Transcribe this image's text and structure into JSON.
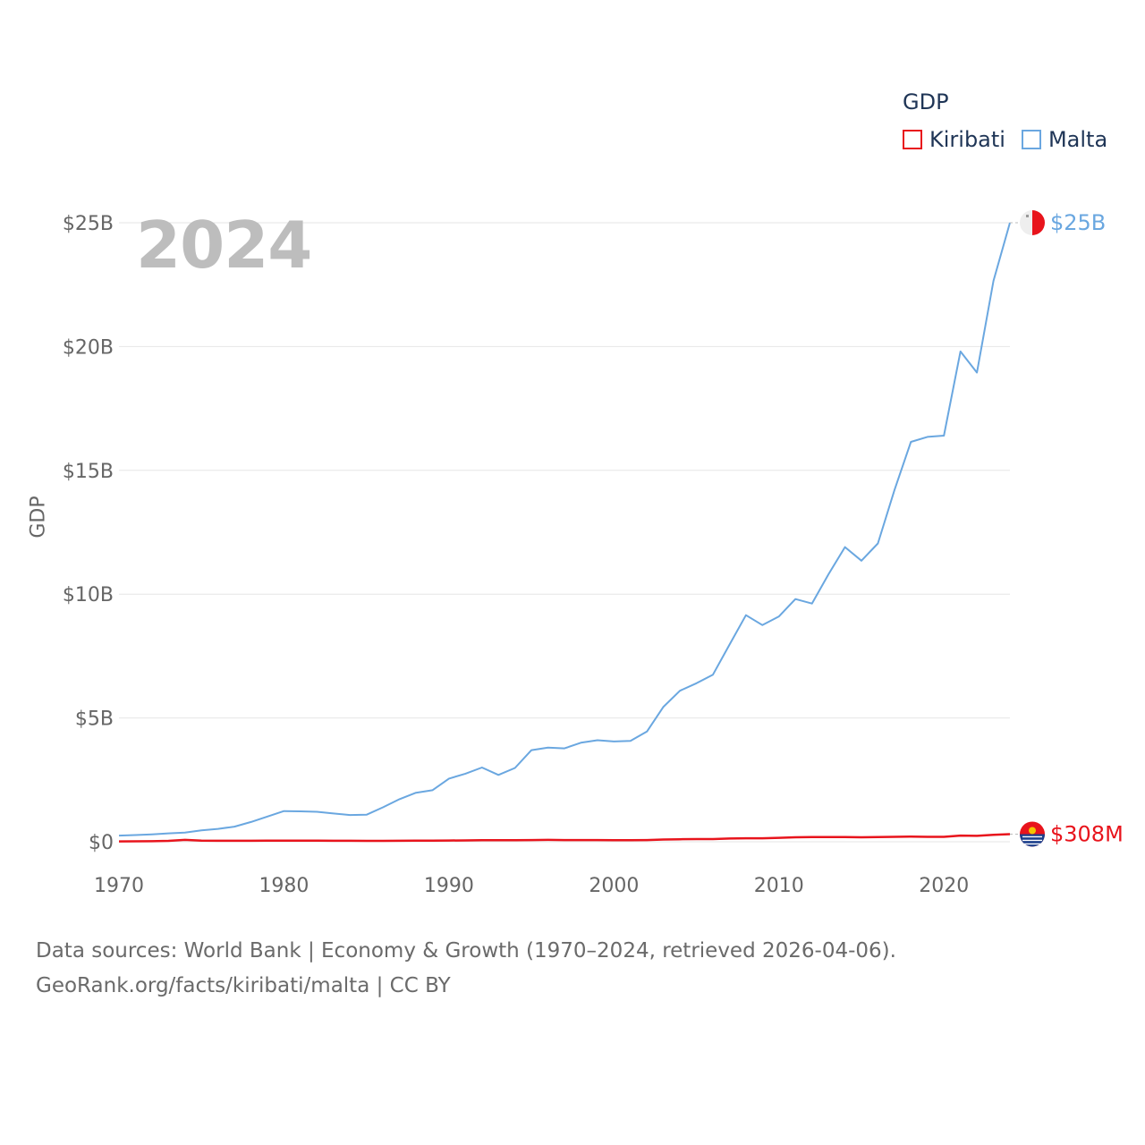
{
  "year_label": "2024",
  "legend": {
    "title": "GDP",
    "items": [
      {
        "name": "Kiribati",
        "color": "#e8141c"
      },
      {
        "name": "Malta",
        "color": "#6aa7e0"
      }
    ]
  },
  "source": {
    "line1": "Data sources: World Bank | Economy & Growth (1970–2024, retrieved 2026-04-06).",
    "line2": "GeoRank.org/facts/kiribati/malta | CC BY"
  },
  "chart_data": {
    "type": "line",
    "title": "GDP",
    "xlabel": "",
    "ylabel": "GDP",
    "xlim": [
      1970,
      2024
    ],
    "ylim": [
      0,
      25
    ],
    "y_unit": "USD billions",
    "x_ticks": [
      1970,
      1980,
      1990,
      2000,
      2010,
      2020
    ],
    "y_ticks": [
      0,
      5,
      10,
      15,
      20,
      25
    ],
    "y_tick_labels": [
      "$0",
      "$5B",
      "$10B",
      "$15B",
      "$20B",
      "$25B"
    ],
    "grid": true,
    "legend_position": "top-right",
    "x": [
      1970,
      1971,
      1972,
      1973,
      1974,
      1975,
      1976,
      1977,
      1978,
      1979,
      1980,
      1981,
      1982,
      1983,
      1984,
      1985,
      1986,
      1987,
      1988,
      1989,
      1990,
      1991,
      1992,
      1993,
      1994,
      1995,
      1996,
      1997,
      1998,
      1999,
      2000,
      2001,
      2002,
      2003,
      2004,
      2005,
      2006,
      2007,
      2008,
      2009,
      2010,
      2011,
      2012,
      2013,
      2014,
      2015,
      2016,
      2017,
      2018,
      2019,
      2020,
      2021,
      2022,
      2023,
      2024
    ],
    "series": [
      {
        "name": "Kiribati",
        "color": "#e8141c",
        "end_label": "$308M",
        "values": [
          0.015,
          0.018,
          0.022,
          0.035,
          0.075,
          0.045,
          0.04,
          0.038,
          0.04,
          0.042,
          0.042,
          0.045,
          0.043,
          0.04,
          0.04,
          0.035,
          0.035,
          0.04,
          0.045,
          0.048,
          0.05,
          0.055,
          0.06,
          0.06,
          0.065,
          0.07,
          0.075,
          0.07,
          0.07,
          0.07,
          0.065,
          0.06,
          0.07,
          0.09,
          0.1,
          0.11,
          0.11,
          0.13,
          0.14,
          0.14,
          0.16,
          0.18,
          0.19,
          0.19,
          0.19,
          0.18,
          0.19,
          0.2,
          0.21,
          0.2,
          0.2,
          0.25,
          0.24,
          0.28,
          0.308
        ]
      },
      {
        "name": "Malta",
        "color": "#6aa7e0",
        "end_label": "$25B",
        "values": [
          0.25,
          0.27,
          0.3,
          0.34,
          0.37,
          0.46,
          0.52,
          0.61,
          0.8,
          1.02,
          1.24,
          1.23,
          1.21,
          1.14,
          1.08,
          1.09,
          1.39,
          1.72,
          1.98,
          2.08,
          2.55,
          2.75,
          3.0,
          2.7,
          2.98,
          3.7,
          3.8,
          3.77,
          4.0,
          4.1,
          4.05,
          4.07,
          4.45,
          5.45,
          6.1,
          6.4,
          6.75,
          7.95,
          9.15,
          8.75,
          9.1,
          9.8,
          9.62,
          10.8,
          11.9,
          11.35,
          12.05,
          14.2,
          16.15,
          16.35,
          16.4,
          19.8,
          18.95,
          22.65,
          25.0
        ]
      }
    ]
  }
}
